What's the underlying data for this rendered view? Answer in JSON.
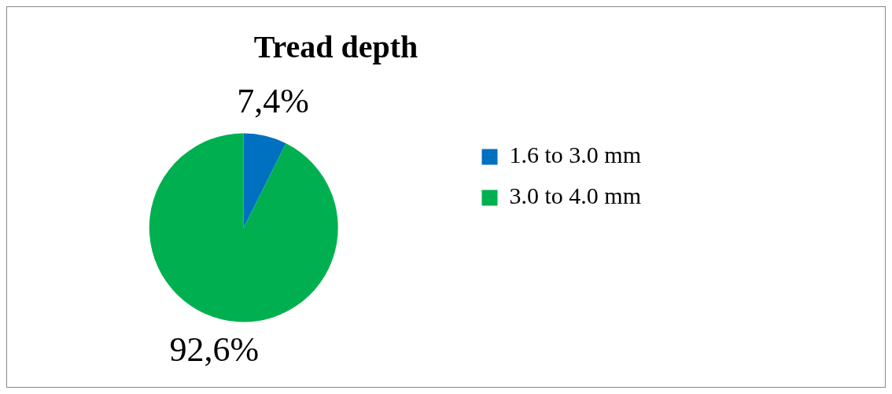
{
  "chart_data": {
    "type": "pie",
    "title": "Tread depth",
    "categories": [
      "1.6 to 3.0 mm",
      "3.0 to 4.0 mm"
    ],
    "values": [
      7.4,
      92.6
    ],
    "colors": [
      "#0070c0",
      "#00b050"
    ],
    "value_labels": [
      "7,4%",
      "92,6%"
    ],
    "legend": "right"
  }
}
